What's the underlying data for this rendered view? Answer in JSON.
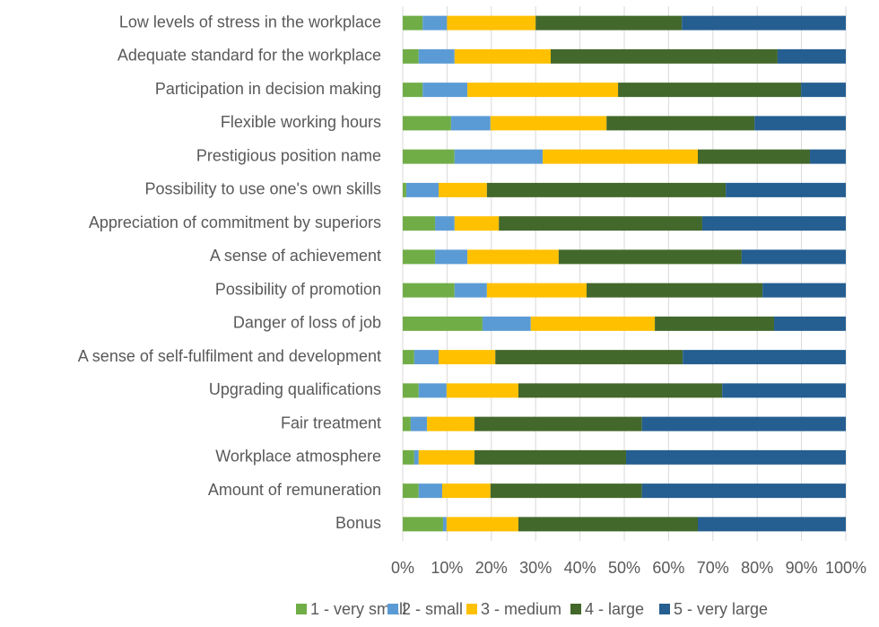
{
  "chart_data": {
    "type": "stacked_barh",
    "categories": [
      "Low levels of stress in the workplace",
      "Adequate standard for the workplace",
      "Participation in decision making",
      "Flexible working hours",
      "Prestigious position name",
      "Possibility to use one's own skills",
      "Appreciation of commitment by superiors",
      "A sense of achievement",
      "Possibility of promotion",
      "Danger of loss of job",
      "A sense of self-fulfilment and development",
      "Upgrading qualifications",
      "Fair treatment",
      "Workplace atmosphere",
      "Amount of remuneration",
      "Bonus"
    ],
    "series": [
      {
        "name": "1 - very small",
        "color": "#70ad47",
        "values": [
          4.5,
          3.6,
          4.5,
          10.9,
          11.7,
          0.8,
          7.3,
          7.3,
          11.7,
          18,
          2.6,
          3.6,
          1.8,
          2.6,
          3.6,
          9.1
        ]
      },
      {
        "name": "2 - small",
        "color": "#5b9bd5",
        "values": [
          5.5,
          8.1,
          10.1,
          8.9,
          19.9,
          7.3,
          4.4,
          7.3,
          7.3,
          10.9,
          5.5,
          6.3,
          3.7,
          1,
          5.3,
          0.8
        ]
      },
      {
        "name": "3 - medium",
        "color": "#ffc000",
        "values": [
          20,
          21.7,
          34,
          26.2,
          35,
          10.9,
          10,
          20.6,
          22.5,
          28,
          12.8,
          16.2,
          10.7,
          12.6,
          10.9,
          16.2
        ]
      },
      {
        "name": "4 - large",
        "color": "#43682b",
        "values": [
          33,
          51.2,
          41.3,
          33.4,
          25.3,
          53.9,
          45.9,
          41.3,
          39.7,
          26.9,
          42.3,
          46,
          37.8,
          34.2,
          34.2,
          40.5
        ]
      },
      {
        "name": "5 - very large",
        "color": "#255e91",
        "values": [
          37,
          15.4,
          10.1,
          20.6,
          8.1,
          27.1,
          32.4,
          23.5,
          18.8,
          16.2,
          36.8,
          27.9,
          46,
          49.6,
          46,
          33.4
        ]
      }
    ],
    "xlim": [
      0,
      100
    ],
    "xticks": [
      {
        "value": 0,
        "label": "0%"
      },
      {
        "value": 10,
        "label": "10%"
      },
      {
        "value": 20,
        "label": "20%"
      },
      {
        "value": 30,
        "label": "30%"
      },
      {
        "value": 40,
        "label": "40%"
      },
      {
        "value": 50,
        "label": "50%"
      },
      {
        "value": 60,
        "label": "60%"
      },
      {
        "value": 70,
        "label": "70%"
      },
      {
        "value": 80,
        "label": "80%"
      },
      {
        "value": 90,
        "label": "90%"
      },
      {
        "value": 100,
        "label": "100%"
      }
    ],
    "grid": true,
    "legend": "bottom"
  }
}
